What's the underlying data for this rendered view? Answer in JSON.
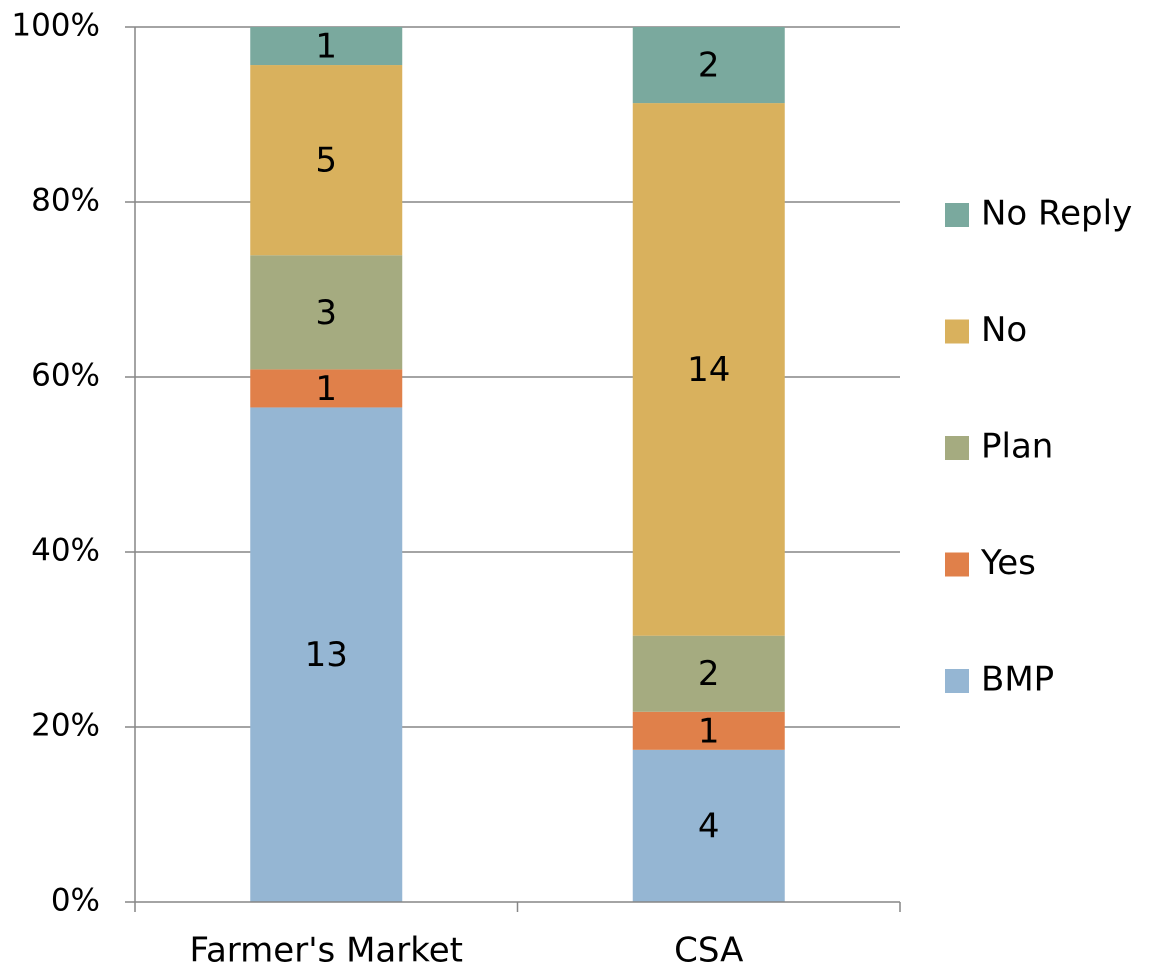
{
  "chart_data": {
    "type": "bar",
    "stacking": "percent",
    "categories": [
      "Farmer's Market",
      "CSA"
    ],
    "series": [
      {
        "name": "BMP",
        "color": "#95b6d3",
        "values": [
          13,
          4
        ]
      },
      {
        "name": "Yes",
        "color": "#e0804a",
        "values": [
          1,
          1
        ]
      },
      {
        "name": "Plan",
        "color": "#a5ab80",
        "values": [
          3,
          2
        ]
      },
      {
        "name": "No",
        "color": "#d9b15d",
        "values": [
          5,
          14
        ]
      },
      {
        "name": "No Reply",
        "color": "#7aa99e",
        "values": [
          1,
          2
        ]
      }
    ],
    "ylim": [
      0,
      100
    ],
    "yticks": [
      {
        "value": 0,
        "label": "0%"
      },
      {
        "value": 20,
        "label": "20%"
      },
      {
        "value": 40,
        "label": "40%"
      },
      {
        "value": 60,
        "label": "60%"
      },
      {
        "value": 80,
        "label": "80%"
      },
      {
        "value": 100,
        "label": "100%"
      }
    ],
    "grid": true,
    "legend": "right"
  }
}
